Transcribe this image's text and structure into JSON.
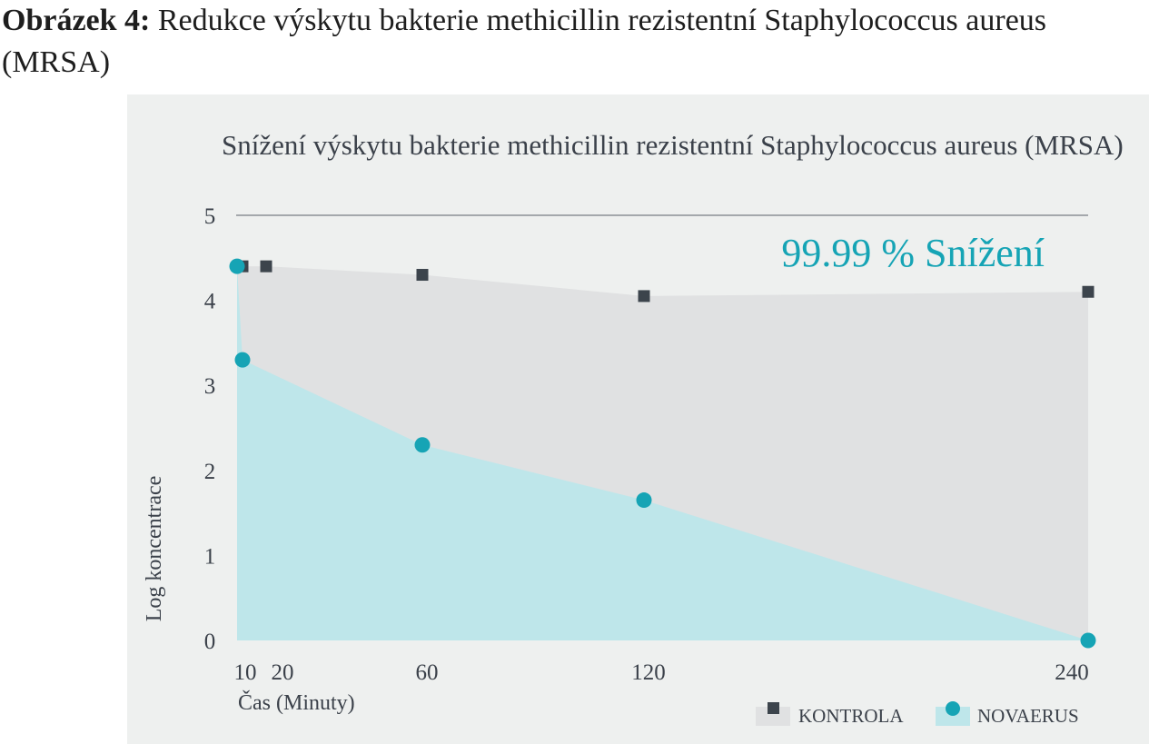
{
  "figure": {
    "label": "Obrázek 4:",
    "caption": "Redukce výskytu bakterie methicillin rezistentní Staphylococcus aureus (MRSA)"
  },
  "colors": {
    "panel_bg": "#eef0ef",
    "control_fill": "#e0e1e2",
    "control_marker": "#3c444c",
    "novaerus_fill": "#bee6ea",
    "novaerus_marker": "#16a4b5",
    "accent_text": "#16a4b5"
  },
  "chart_data": {
    "type": "area",
    "title": "Snížení výskytu bakterie methicillin rezistentní Staphylococcus aureus (MRSA)",
    "xlabel": "Čas (Minuty)",
    "ylabel": "Log koncentrace",
    "x_ticks": [
      "10",
      "20",
      "60",
      "120",
      "240"
    ],
    "y_ticks": [
      "0",
      "1",
      "2",
      "3",
      "4",
      "5"
    ],
    "ylim": [
      0,
      5
    ],
    "annotation": "99.99 % Snížení",
    "legend_position": "bottom-right",
    "grid": false,
    "series": [
      {
        "name": "KONTROLA",
        "marker": "square",
        "points": [
          [
            10,
            4.4
          ],
          [
            20,
            4.4
          ],
          [
            60,
            4.3
          ],
          [
            120,
            4.05
          ],
          [
            240,
            4.1
          ]
        ]
      },
      {
        "name": "NOVAERUS",
        "marker": "circle",
        "points": [
          [
            0,
            4.4
          ],
          [
            10,
            3.3
          ],
          [
            60,
            2.3
          ],
          [
            120,
            1.65
          ],
          [
            240,
            0
          ]
        ]
      }
    ]
  }
}
